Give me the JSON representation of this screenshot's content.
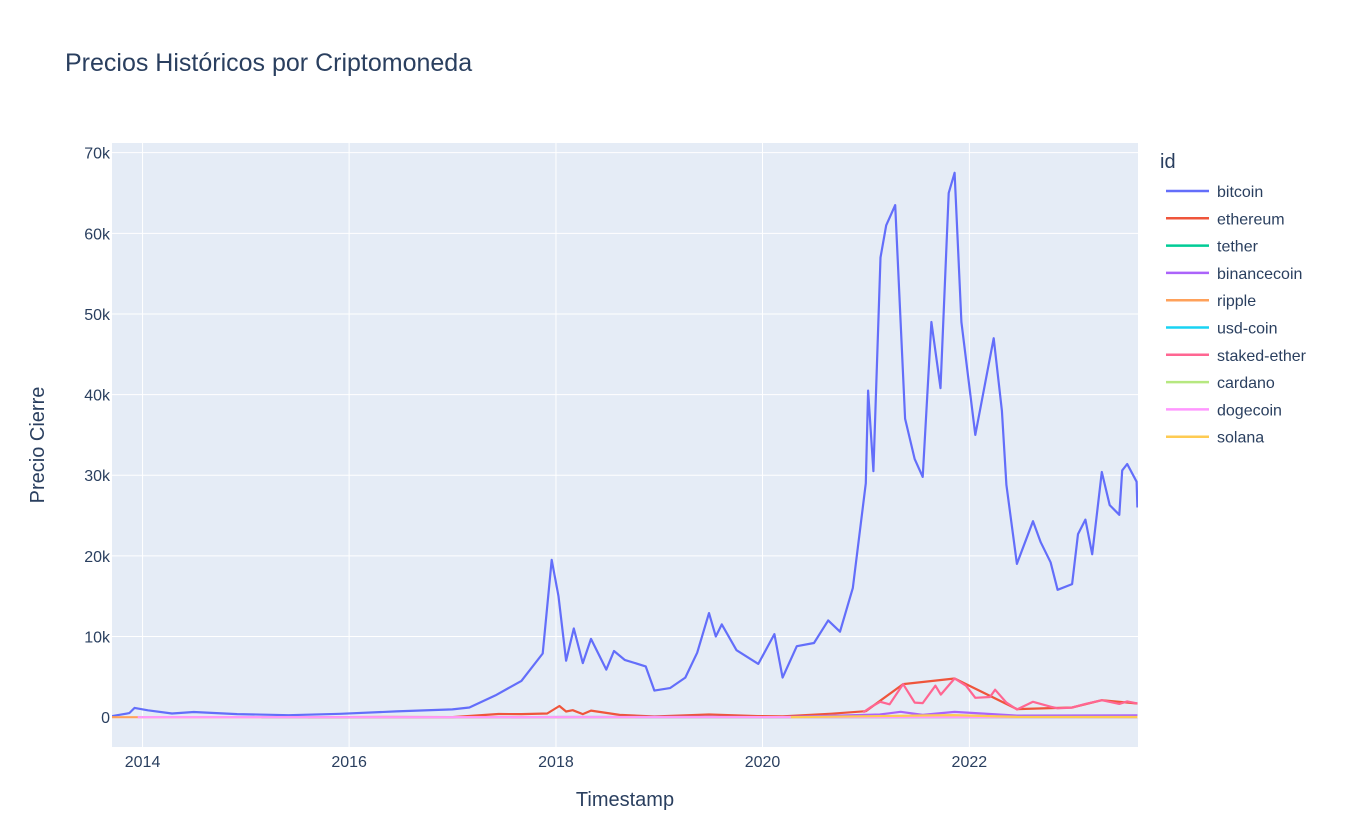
{
  "chart_data": {
    "type": "line",
    "title": "Precios Históricos por Criptomoneda",
    "xlabel": "Timestamp",
    "ylabel": "Precio Cierre",
    "xlim": [
      "2013-09-15",
      "2023-08-20"
    ],
    "ylim": [
      -3700,
      71200
    ],
    "x_ticks": [
      "2014",
      "2016",
      "2018",
      "2020",
      "2022"
    ],
    "y_ticks": [
      {
        "value": 0,
        "label": "0"
      },
      {
        "value": 10000,
        "label": "10k"
      },
      {
        "value": 20000,
        "label": "20k"
      },
      {
        "value": 30000,
        "label": "30k"
      },
      {
        "value": 40000,
        "label": "40k"
      },
      {
        "value": 50000,
        "label": "50k"
      },
      {
        "value": 60000,
        "label": "60k"
      },
      {
        "value": 70000,
        "label": "70k"
      }
    ],
    "grid": true,
    "plot_bgcolor": "#e5ecf6",
    "legend": {
      "title": "id",
      "position": "right"
    },
    "series": [
      {
        "name": "bitcoin",
        "color": "#636efa",
        "points": [
          [
            "2013-09-15",
            130
          ],
          [
            "2013-11-15",
            500
          ],
          [
            "2013-12-04",
            1150
          ],
          [
            "2014-01-20",
            850
          ],
          [
            "2014-04-15",
            450
          ],
          [
            "2014-07-01",
            640
          ],
          [
            "2014-12-01",
            380
          ],
          [
            "2015-06-01",
            240
          ],
          [
            "2015-12-01",
            420
          ],
          [
            "2016-06-15",
            720
          ],
          [
            "2016-12-31",
            960
          ],
          [
            "2017-03-01",
            1200
          ],
          [
            "2017-06-01",
            2700
          ],
          [
            "2017-09-01",
            4500
          ],
          [
            "2017-11-15",
            7900
          ],
          [
            "2017-12-17",
            19500
          ],
          [
            "2018-01-10",
            15000
          ],
          [
            "2018-02-06",
            7000
          ],
          [
            "2018-03-05",
            11000
          ],
          [
            "2018-04-06",
            6700
          ],
          [
            "2018-05-05",
            9700
          ],
          [
            "2018-06-28",
            5900
          ],
          [
            "2018-07-25",
            8200
          ],
          [
            "2018-09-01",
            7100
          ],
          [
            "2018-11-14",
            6300
          ],
          [
            "2018-12-15",
            3300
          ],
          [
            "2019-02-08",
            3600
          ],
          [
            "2019-04-03",
            4900
          ],
          [
            "2019-05-15",
            8000
          ],
          [
            "2019-06-26",
            12900
          ],
          [
            "2019-07-20",
            10000
          ],
          [
            "2019-08-10",
            11500
          ],
          [
            "2019-10-01",
            8300
          ],
          [
            "2019-12-17",
            6600
          ],
          [
            "2020-02-12",
            10300
          ],
          [
            "2020-03-12",
            4900
          ],
          [
            "2020-05-01",
            8800
          ],
          [
            "2020-07-01",
            9200
          ],
          [
            "2020-08-20",
            12000
          ],
          [
            "2020-10-01",
            10600
          ],
          [
            "2020-11-15",
            16000
          ],
          [
            "2020-12-31",
            29000
          ],
          [
            "2021-01-08",
            40500
          ],
          [
            "2021-01-27",
            30500
          ],
          [
            "2021-02-21",
            57000
          ],
          [
            "2021-03-13",
            61000
          ],
          [
            "2021-04-14",
            63500
          ],
          [
            "2021-05-19",
            37000
          ],
          [
            "2021-06-22",
            32000
          ],
          [
            "2021-07-20",
            29800
          ],
          [
            "2021-08-20",
            49000
          ],
          [
            "2021-09-21",
            40800
          ],
          [
            "2021-10-20",
            65000
          ],
          [
            "2021-11-10",
            67500
          ],
          [
            "2021-12-04",
            49000
          ],
          [
            "2022-01-22",
            35000
          ],
          [
            "2022-03-28",
            47000
          ],
          [
            "2022-04-26",
            38000
          ],
          [
            "2022-05-12",
            28800
          ],
          [
            "2022-06-18",
            19000
          ],
          [
            "2022-08-14",
            24300
          ],
          [
            "2022-09-10",
            21700
          ],
          [
            "2022-10-15",
            19200
          ],
          [
            "2022-11-09",
            15800
          ],
          [
            "2022-12-30",
            16500
          ],
          [
            "2023-01-20",
            22700
          ],
          [
            "2023-02-15",
            24500
          ],
          [
            "2023-03-11",
            20200
          ],
          [
            "2023-04-14",
            30400
          ],
          [
            "2023-05-12",
            26300
          ],
          [
            "2023-06-15",
            25100
          ],
          [
            "2023-06-25",
            30600
          ],
          [
            "2023-07-13",
            31400
          ],
          [
            "2023-08-15",
            29200
          ],
          [
            "2023-08-18",
            26000
          ]
        ]
      },
      {
        "name": "ethereum",
        "color": "#ef553b",
        "points": [
          [
            "2015-08-08",
            1
          ],
          [
            "2016-06-01",
            14
          ],
          [
            "2017-01-01",
            8
          ],
          [
            "2017-06-12",
            390
          ],
          [
            "2017-09-01",
            380
          ],
          [
            "2017-12-01",
            460
          ],
          [
            "2018-01-13",
            1390
          ],
          [
            "2018-02-06",
            700
          ],
          [
            "2018-03-01",
            860
          ],
          [
            "2018-04-06",
            380
          ],
          [
            "2018-05-05",
            820
          ],
          [
            "2018-08-14",
            280
          ],
          [
            "2018-12-15",
            85
          ],
          [
            "2019-06-26",
            330
          ],
          [
            "2019-12-15",
            130
          ],
          [
            "2020-03-12",
            110
          ],
          [
            "2020-09-01",
            430
          ],
          [
            "2020-12-31",
            740
          ],
          [
            "2021-05-12",
            4100
          ],
          [
            "2021-11-10",
            4800
          ],
          [
            "2022-06-18",
            1000
          ],
          [
            "2022-12-30",
            1200
          ],
          [
            "2023-04-14",
            2100
          ],
          [
            "2023-08-18",
            1700
          ]
        ]
      },
      {
        "name": "tether",
        "color": "#00cc96",
        "points": [
          [
            "2015-02-25",
            1
          ],
          [
            "2023-08-18",
            1
          ]
        ]
      },
      {
        "name": "binancecoin",
        "color": "#ab63fa",
        "points": [
          [
            "2017-07-25",
            0.1
          ],
          [
            "2018-01-15",
            20
          ],
          [
            "2019-06-26",
            38
          ],
          [
            "2020-03-12",
            10
          ],
          [
            "2021-02-19",
            330
          ],
          [
            "2021-05-03",
            660
          ],
          [
            "2021-07-20",
            280
          ],
          [
            "2021-11-10",
            650
          ],
          [
            "2022-06-18",
            200
          ],
          [
            "2023-08-18",
            230
          ]
        ]
      },
      {
        "name": "ripple",
        "color": "#ffa15a",
        "points": [
          [
            "2013-09-15",
            0.005
          ],
          [
            "2018-01-04",
            3.3
          ],
          [
            "2019-12-17",
            0.2
          ],
          [
            "2021-04-14",
            1.9
          ],
          [
            "2023-08-18",
            0.5
          ]
        ]
      },
      {
        "name": "usd-coin",
        "color": "#19d3f3",
        "points": [
          [
            "2018-10-08",
            1
          ],
          [
            "2023-08-18",
            1
          ]
        ]
      },
      {
        "name": "staked-ether",
        "color": "#ff6692",
        "points": [
          [
            "2020-12-22",
            600
          ],
          [
            "2021-01-20",
            1300
          ],
          [
            "2021-02-20",
            1900
          ],
          [
            "2021-03-25",
            1600
          ],
          [
            "2021-05-12",
            4100
          ],
          [
            "2021-06-22",
            1800
          ],
          [
            "2021-07-20",
            1750
          ],
          [
            "2021-09-03",
            3900
          ],
          [
            "2021-09-22",
            2800
          ],
          [
            "2021-11-10",
            4800
          ],
          [
            "2021-12-20",
            3900
          ],
          [
            "2022-01-22",
            2400
          ],
          [
            "2022-03-15",
            2500
          ],
          [
            "2022-04-02",
            3400
          ],
          [
            "2022-05-12",
            1800
          ],
          [
            "2022-06-18",
            950
          ],
          [
            "2022-08-14",
            1900
          ],
          [
            "2022-10-15",
            1300
          ],
          [
            "2022-11-09",
            1100
          ],
          [
            "2022-12-30",
            1190
          ],
          [
            "2023-02-15",
            1650
          ],
          [
            "2023-04-14",
            2100
          ],
          [
            "2023-06-15",
            1650
          ],
          [
            "2023-07-13",
            1950
          ],
          [
            "2023-08-18",
            1700
          ]
        ]
      },
      {
        "name": "cardano",
        "color": "#b6e880",
        "points": [
          [
            "2017-10-01",
            0.02
          ],
          [
            "2018-01-04",
            1.2
          ],
          [
            "2021-09-02",
            3
          ],
          [
            "2023-08-18",
            0.28
          ]
        ]
      },
      {
        "name": "dogecoin",
        "color": "#ff97ff",
        "points": [
          [
            "2013-12-15",
            0.0002
          ],
          [
            "2021-05-08",
            0.7
          ],
          [
            "2023-08-18",
            0.06
          ]
        ]
      },
      {
        "name": "solana",
        "color": "#fecb52",
        "points": [
          [
            "2020-04-10",
            0.9
          ],
          [
            "2021-11-06",
            260
          ],
          [
            "2022-06-18",
            30
          ],
          [
            "2023-08-18",
            22
          ]
        ]
      }
    ]
  }
}
